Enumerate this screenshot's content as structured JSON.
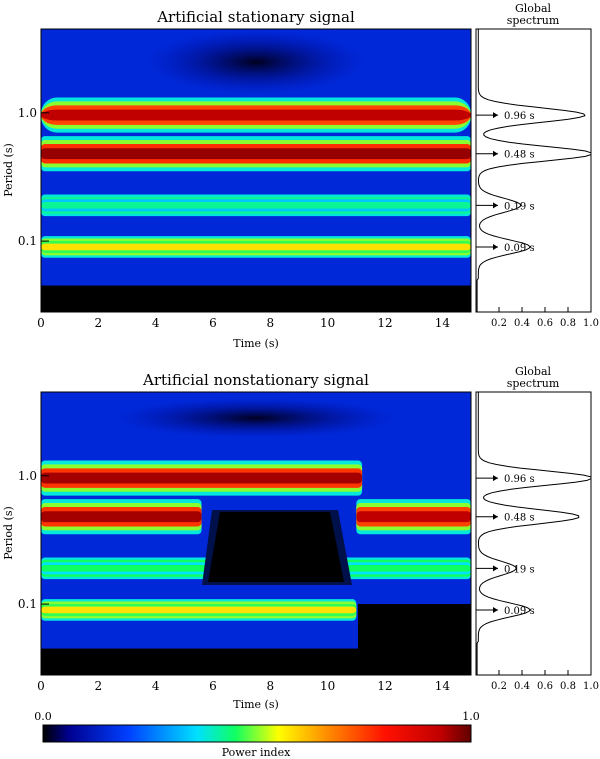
{
  "chart_data": [
    {
      "type": "heatmap",
      "title": "Artificial stationary signal",
      "xlabel": "Time (s)",
      "ylabel": "Period (s)",
      "xlim": [
        0,
        15
      ],
      "ylim": [
        0.028,
        4.5
      ],
      "y_scale": "log",
      "x_ticks": [
        "0",
        "2",
        "4",
        "6",
        "8",
        "10",
        "12",
        "14"
      ],
      "y_ticks": [
        "0.1",
        "1.0"
      ],
      "bands": [
        {
          "period": 0.96,
          "power": 0.93,
          "t_start": 0,
          "t_end": 15
        },
        {
          "period": 0.48,
          "power": 0.96,
          "t_start": 0,
          "t_end": 15
        },
        {
          "period": 0.19,
          "power": 0.42,
          "t_start": 0,
          "t_end": 15
        },
        {
          "period": 0.09,
          "power": 0.58,
          "t_start": 0,
          "t_end": 15
        }
      ]
    },
    {
      "type": "line",
      "title": "Global spectrum",
      "title_lines": [
        "Global",
        "spectrum"
      ],
      "xlim": [
        0,
        1
      ],
      "x_ticks": [
        "0.2",
        "0.4",
        "0.6",
        "0.8",
        "1.0"
      ],
      "peaks": [
        {
          "period": 0.96,
          "power": 0.93,
          "label": "0.96 s"
        },
        {
          "period": 0.48,
          "power": 1.0,
          "label": "0.48 s"
        },
        {
          "period": 0.19,
          "power": 0.37,
          "label": "0.19 s"
        },
        {
          "period": 0.09,
          "power": 0.45,
          "label": "0.09 s"
        }
      ]
    },
    {
      "type": "heatmap",
      "title": "Artificial nonstationary signal",
      "xlabel": "Time (s)",
      "ylabel": "Period (s)",
      "xlim": [
        0,
        15
      ],
      "ylim": [
        0.028,
        4.5
      ],
      "y_scale": "log",
      "x_ticks": [
        "0",
        "2",
        "4",
        "6",
        "8",
        "10",
        "12",
        "14"
      ],
      "y_ticks": [
        "0.1",
        "1.0"
      ],
      "bands": [
        {
          "period": 0.96,
          "power": 0.95,
          "t_start": 0,
          "t_end": 11.2
        },
        {
          "period": 0.48,
          "power": 0.95,
          "t_start": 0,
          "t_end": 5.6
        },
        {
          "period": 0.48,
          "power": 0.93,
          "t_start": 11,
          "t_end": 15
        },
        {
          "period": 0.19,
          "power": 0.45,
          "t_start": 0,
          "t_end": 15
        },
        {
          "period": 0.09,
          "power": 0.58,
          "t_start": 0,
          "t_end": 11
        }
      ]
    },
    {
      "type": "line",
      "title": "Global spectrum",
      "title_lines": [
        "Global",
        "spectrum"
      ],
      "xlim": [
        0,
        1
      ],
      "x_ticks": [
        "0.2",
        "0.4",
        "0.6",
        "0.8",
        "1.0"
      ],
      "peaks": [
        {
          "period": 0.96,
          "power": 1.0,
          "label": "0.96 s"
        },
        {
          "period": 0.48,
          "power": 0.88,
          "label": "0.48 s"
        },
        {
          "period": 0.19,
          "power": 0.33,
          "label": "0.19 s"
        },
        {
          "period": 0.09,
          "power": 0.45,
          "label": "0.09 s"
        }
      ]
    }
  ],
  "colorbar": {
    "min_label": "0.0",
    "max_label": "1.0",
    "label": "Power index"
  }
}
